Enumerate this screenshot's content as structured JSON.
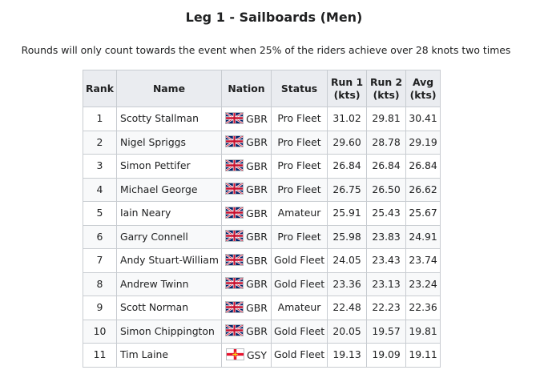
{
  "heading": "Leg 1 - Sailboards (Men)",
  "note": "Rounds will only count towards the event when 25% of the riders achieve over 28 knots two times",
  "columns": {
    "rank": "Rank",
    "name": "Name",
    "nation": "Nation",
    "status": "Status",
    "run1_line1": "Run 1",
    "run1_line2": "(kts)",
    "run2_line1": "Run 2",
    "run2_line2": "(kts)",
    "avg_line1": "Avg",
    "avg_line2": "(kts)"
  },
  "rows": [
    {
      "rank": "1",
      "name": "Scotty Stallman",
      "flag": "uk-flag-icon",
      "nation": "GBR",
      "status": "Pro Fleet",
      "run1": "31.02",
      "run2": "29.81",
      "avg": "30.41"
    },
    {
      "rank": "2",
      "name": "Nigel Spriggs",
      "flag": "uk-flag-icon",
      "nation": "GBR",
      "status": "Pro Fleet",
      "run1": "29.60",
      "run2": "28.78",
      "avg": "29.19"
    },
    {
      "rank": "3",
      "name": "Simon Pettifer",
      "flag": "uk-flag-icon",
      "nation": "GBR",
      "status": "Pro Fleet",
      "run1": "26.84",
      "run2": "26.84",
      "avg": "26.84"
    },
    {
      "rank": "4",
      "name": "Michael George",
      "flag": "uk-flag-icon",
      "nation": "GBR",
      "status": "Pro Fleet",
      "run1": "26.75",
      "run2": "26.50",
      "avg": "26.62"
    },
    {
      "rank": "5",
      "name": "Iain Neary",
      "flag": "uk-flag-icon",
      "nation": "GBR",
      "status": "Amateur",
      "run1": "25.91",
      "run2": "25.43",
      "avg": "25.67"
    },
    {
      "rank": "6",
      "name": "Garry Connell",
      "flag": "uk-flag-icon",
      "nation": "GBR",
      "status": "Pro Fleet",
      "run1": "25.98",
      "run2": "23.83",
      "avg": "24.91"
    },
    {
      "rank": "7",
      "name": "Andy Stuart-William",
      "flag": "uk-flag-icon",
      "nation": "GBR",
      "status": "Gold Fleet",
      "run1": "24.05",
      "run2": "23.43",
      "avg": "23.74"
    },
    {
      "rank": "8",
      "name": "Andrew Twinn",
      "flag": "uk-flag-icon",
      "nation": "GBR",
      "status": "Gold Fleet",
      "run1": "23.36",
      "run2": "23.13",
      "avg": "23.24"
    },
    {
      "rank": "9",
      "name": "Scott Norman",
      "flag": "uk-flag-icon",
      "nation": "GBR",
      "status": "Amateur",
      "run1": "22.48",
      "run2": "22.23",
      "avg": "22.36"
    },
    {
      "rank": "10",
      "name": "Simon Chippington",
      "flag": "uk-flag-icon",
      "nation": "GBR",
      "status": "Gold Fleet",
      "run1": "20.05",
      "run2": "19.57",
      "avg": "19.81"
    },
    {
      "rank": "11",
      "name": "Tim Laine",
      "flag": "guernsey-flag-icon",
      "nation": "GSY",
      "status": "Gold Fleet",
      "run1": "19.13",
      "run2": "19.09",
      "avg": "19.11"
    }
  ],
  "colors": {
    "uk_blue": "#012169",
    "uk_red": "#C8102E",
    "guernsey_red": "#E8112D",
    "guernsey_gold": "#F9DD16"
  }
}
